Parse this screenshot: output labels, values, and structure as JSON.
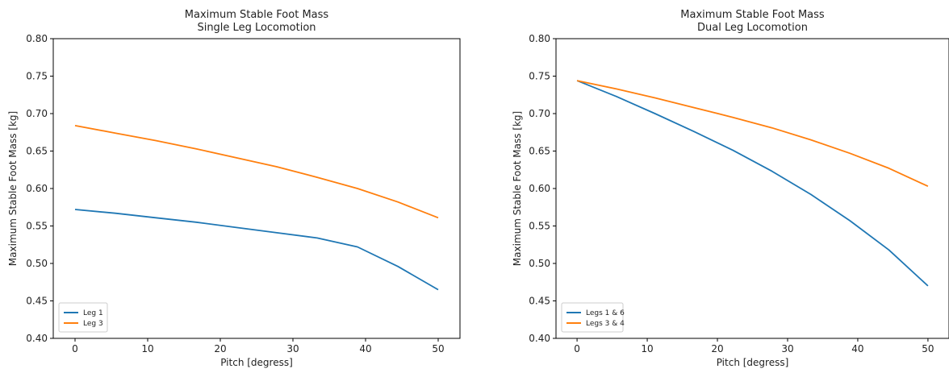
{
  "chart_data": [
    {
      "type": "line",
      "title": "Maximum Stable Foot Mass",
      "subtitle": "Single Leg Locomotion",
      "xlabel": "Pitch [degress]",
      "ylabel": "Maximum Stable Foot Mass [kg]",
      "xlim": [
        -3,
        53
      ],
      "ylim": [
        0.4,
        0.8
      ],
      "xticks": [
        "0",
        "10",
        "20",
        "30",
        "40",
        "50"
      ],
      "yticks": [
        "0.40",
        "0.45",
        "0.50",
        "0.55",
        "0.60",
        "0.65",
        "0.70",
        "0.75",
        "0.80"
      ],
      "legend_position": "bottom-left",
      "grid": false,
      "x": [
        0,
        5.56,
        11.11,
        16.67,
        22.22,
        27.78,
        33.33,
        38.89,
        44.44,
        50
      ],
      "series": [
        {
          "name": "Leg 1",
          "color": "#1f77b4",
          "values": [
            0.572,
            0.567,
            0.561,
            0.555,
            0.548,
            0.541,
            0.534,
            0.522,
            0.496,
            0.465
          ]
        },
        {
          "name": "Leg 3",
          "color": "#ff7f0e",
          "values": [
            0.684,
            0.674,
            0.664,
            0.653,
            0.641,
            0.629,
            0.615,
            0.6,
            0.582,
            0.561
          ]
        }
      ]
    },
    {
      "type": "line",
      "title": "Maximum Stable Foot Mass",
      "subtitle": "Dual Leg Locomotion",
      "xlabel": "Pitch [degress]",
      "ylabel": "Maximum Stable Foot Mass [kg]",
      "xlim": [
        -3,
        53
      ],
      "ylim": [
        0.4,
        0.8
      ],
      "xticks": [
        "0",
        "10",
        "20",
        "30",
        "40",
        "50"
      ],
      "yticks": [
        "0.40",
        "0.45",
        "0.50",
        "0.55",
        "0.60",
        "0.65",
        "0.70",
        "0.75",
        "0.80"
      ],
      "legend_position": "bottom-left",
      "grid": false,
      "x": [
        0,
        5.56,
        11.11,
        16.67,
        22.22,
        27.78,
        33.33,
        38.89,
        44.44,
        50
      ],
      "series": [
        {
          "name": "Legs 1 & 6",
          "color": "#1f77b4",
          "values": [
            0.744,
            0.723,
            0.7,
            0.676,
            0.651,
            0.623,
            0.592,
            0.557,
            0.518,
            0.47
          ]
        },
        {
          "name": "Legs 3 & 4",
          "color": "#ff7f0e",
          "values": [
            0.744,
            0.733,
            0.721,
            0.708,
            0.695,
            0.681,
            0.665,
            0.647,
            0.627,
            0.603
          ]
        }
      ]
    }
  ]
}
